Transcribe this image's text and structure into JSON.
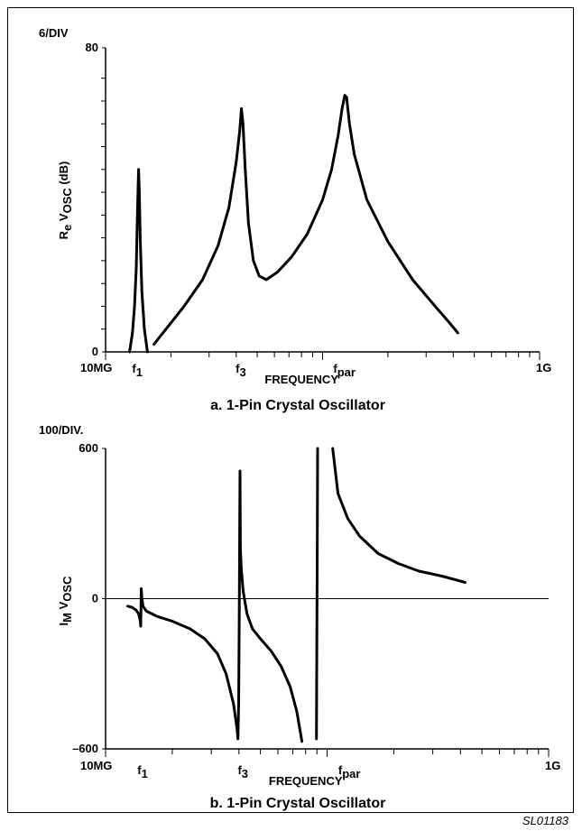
{
  "figure_code": "SL01183",
  "chart_data": [
    {
      "type": "line",
      "id": "a",
      "caption": "a. 1-Pin Crystal Oscillator",
      "scale_label": "6/DIV",
      "ylabel_main": "R",
      "ylabel_sub1": "e",
      "ylabel_main2": " V",
      "ylabel_sub2": "OSC",
      "ylabel_unit": " (dB)",
      "xlabel": "FREQUENCY",
      "x_scale": "log",
      "x_range": [
        10,
        1000
      ],
      "x_unit": "MHz",
      "ylim": [
        0,
        80
      ],
      "y_tick_labels": [
        {
          "value": 0,
          "label": "0"
        },
        {
          "value": 80,
          "label": "80"
        }
      ],
      "y_minor_ticks": [
        6,
        12,
        18,
        24,
        30,
        36,
        42,
        48,
        54,
        60,
        66,
        72
      ],
      "x_end_labels": {
        "left": "10MG",
        "right": "1G"
      },
      "x_marker_labels": [
        {
          "base": "f",
          "sub": "1",
          "x": 14
        },
        {
          "base": "f",
          "sub": "3",
          "x": 42
        },
        {
          "base": "f",
          "sub": "par",
          "x": 126
        }
      ],
      "zero_line": false,
      "series": [
        {
          "points": [
            [
              12.9,
              0
            ],
            [
              13.3,
              5
            ],
            [
              13.6,
              12
            ],
            [
              13.85,
              22
            ],
            [
              14.0,
              34
            ],
            [
              14.1,
              42
            ],
            [
              14.2,
              48
            ],
            [
              14.3,
              42
            ],
            [
              14.45,
              30
            ],
            [
              14.7,
              16
            ],
            [
              15.1,
              6
            ],
            [
              15.6,
              0
            ]
          ]
        },
        {
          "points": [
            [
              16.7,
              2
            ],
            [
              19,
              6
            ],
            [
              23,
              12
            ],
            [
              28,
              19
            ],
            [
              33,
              28
            ],
            [
              37,
              38
            ],
            [
              40,
              50
            ],
            [
              41.5,
              58
            ],
            [
              42.3,
              64
            ],
            [
              43,
              60
            ],
            [
              44,
              48
            ],
            [
              45.5,
              34
            ],
            [
              48,
              24
            ],
            [
              51,
              20
            ],
            [
              55,
              19
            ],
            [
              62,
              21
            ],
            [
              72,
              25
            ],
            [
              85,
              31
            ],
            [
              100,
              40
            ],
            [
              110,
              48
            ],
            [
              118,
              57
            ],
            [
              123,
              64
            ],
            [
              126.5,
              67.5
            ],
            [
              129,
              67
            ],
            [
              133,
              60
            ],
            [
              140,
              52
            ],
            [
              160,
              40
            ],
            [
              200,
              29
            ],
            [
              260,
              19
            ],
            [
              330,
              12
            ],
            [
              380,
              8
            ],
            [
              420,
              5
            ]
          ]
        }
      ]
    },
    {
      "type": "line",
      "id": "b",
      "caption": "b. 1-Pin Crystal Oscillator",
      "scale_label": "100/DIV.",
      "ylabel_main": "I",
      "ylabel_sub1": "M",
      "ylabel_main2": " V",
      "ylabel_sub2": "OSC",
      "ylabel_unit": "",
      "xlabel": "FREQUENCY",
      "x_scale": "log",
      "x_range": [
        10,
        1000
      ],
      "x_unit": "MHz",
      "ylim": [
        -600,
        600
      ],
      "y_tick_labels": [
        {
          "value": -600,
          "label": "–600"
        },
        {
          "value": 0,
          "label": "0"
        },
        {
          "value": 600,
          "label": "600"
        }
      ],
      "y_minor_ticks": [],
      "x_end_labels": {
        "left": "10MG",
        "right": "1G"
      },
      "x_marker_labels": [
        {
          "base": "f",
          "sub": "1",
          "x": 14.7
        },
        {
          "base": "f",
          "sub": "3",
          "x": 41.7
        },
        {
          "base": "f",
          "sub": "par",
          "x": 126
        }
      ],
      "zero_line": true,
      "series": [
        {
          "points": [
            [
              12.6,
              -30
            ],
            [
              13.2,
              -35
            ],
            [
              13.7,
              -45
            ],
            [
              14.1,
              -60
            ],
            [
              14.35,
              -90
            ],
            [
              14.42,
              -110
            ],
            [
              14.48,
              40
            ],
            [
              14.56,
              10
            ],
            [
              14.75,
              -30
            ],
            [
              15.3,
              -50
            ],
            [
              17,
              -70
            ],
            [
              20,
              -90
            ],
            [
              24,
              -120
            ],
            [
              28,
              -160
            ],
            [
              32,
              -220
            ],
            [
              35,
              -300
            ],
            [
              37.8,
              -420
            ],
            [
              39.2,
              -520
            ],
            [
              39.6,
              -560
            ],
            [
              39.9,
              -420
            ],
            [
              40.1,
              -100
            ],
            [
              40.3,
              250
            ],
            [
              40.45,
              510
            ],
            [
              40.6,
              200
            ],
            [
              41,
              120
            ],
            [
              41.8,
              30
            ],
            [
              43.5,
              -60
            ],
            [
              46,
              -120
            ],
            [
              50,
              -160
            ],
            [
              56,
              -210
            ],
            [
              62,
              -270
            ],
            [
              68,
              -350
            ],
            [
              73,
              -450
            ],
            [
              76,
              -540
            ],
            [
              77,
              -570
            ]
          ]
        },
        {
          "points": [
            [
              89.5,
              -560
            ],
            [
              89.9,
              -200
            ],
            [
              90.3,
              200
            ],
            [
              90.6,
              600
            ]
          ]
        },
        {
          "points": [
            [
              106,
              600
            ],
            [
              112,
              420
            ],
            [
              124,
              320
            ],
            [
              140,
              250
            ],
            [
              170,
              180
            ],
            [
              210,
              140
            ],
            [
              260,
              110
            ],
            [
              330,
              90
            ],
            [
              420,
              65
            ]
          ]
        }
      ]
    }
  ]
}
